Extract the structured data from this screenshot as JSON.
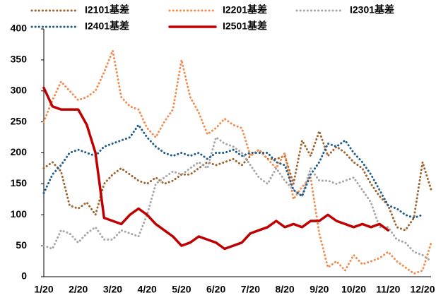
{
  "chart_data": {
    "type": "line",
    "categories": [
      "1/20",
      null,
      null,
      null,
      "2/20",
      null,
      null,
      null,
      "3/20",
      null,
      null,
      null,
      "4/20",
      null,
      null,
      null,
      "5/20",
      null,
      null,
      null,
      "6/20",
      null,
      null,
      null,
      "7/20",
      null,
      null,
      null,
      "8/20",
      null,
      null,
      null,
      "9/20",
      null,
      null,
      null,
      "10/20",
      null,
      null,
      null,
      "11/20",
      null,
      null,
      null,
      "12/20",
      null
    ],
    "ylim": [
      0,
      400
    ],
    "yticks": [
      0,
      50,
      100,
      150,
      200,
      250,
      300,
      350,
      400
    ],
    "series": [
      {
        "name": "I2101基差",
        "color": "#a0622d",
        "dashed": true,
        "values": [
          175,
          185,
          170,
          115,
          110,
          120,
          100,
          150,
          165,
          175,
          165,
          155,
          150,
          160,
          150,
          155,
          165,
          165,
          175,
          185,
          180,
          185,
          190,
          180,
          195,
          205,
          190,
          190,
          195,
          150,
          220,
          195,
          235,
          195,
          210,
          200,
          185,
          175,
          150,
          130,
          115,
          80,
          75,
          95,
          185,
          140
        ]
      },
      {
        "name": "I2201基差",
        "color": "#f58b4c",
        "dashed": true,
        "values": [
          250,
          285,
          315,
          300,
          285,
          290,
          300,
          330,
          365,
          290,
          275,
          270,
          240,
          225,
          250,
          270,
          350,
          290,
          265,
          230,
          240,
          255,
          245,
          240,
          195,
          205,
          190,
          175,
          200,
          125,
          145,
          160,
          70,
          15,
          25,
          10,
          35,
          20,
          25,
          30,
          40,
          25,
          15,
          5,
          10,
          55
        ]
      },
      {
        "name": "I2301基差",
        "color": "#a6a6a6",
        "dashed": true,
        "values": [
          50,
          45,
          75,
          70,
          55,
          70,
          80,
          60,
          60,
          75,
          70,
          65,
          100,
          150,
          160,
          170,
          165,
          175,
          185,
          175,
          225,
          215,
          210,
          200,
          180,
          160,
          150,
          175,
          155,
          140,
          130,
          175,
          155,
          155,
          150,
          155,
          160,
          140,
          120,
          80,
          80,
          60,
          55,
          40,
          35,
          25
        ]
      },
      {
        "name": "I2401基差",
        "color": "#1f5c8b",
        "dashed": true,
        "values": [
          135,
          165,
          180,
          200,
          205,
          200,
          195,
          210,
          215,
          220,
          225,
          245,
          225,
          210,
          200,
          195,
          200,
          195,
          200,
          190,
          200,
          200,
          205,
          195,
          200,
          200,
          200,
          185,
          180,
          140,
          130,
          165,
          185,
          215,
          210,
          220,
          200,
          185,
          165,
          140,
          115,
          110,
          100,
          95,
          100,
          null
        ]
      },
      {
        "name": "I2501基差",
        "color": "#c00000",
        "dashed": false,
        "values": [
          305,
          275,
          270,
          270,
          270,
          245,
          200,
          95,
          90,
          85,
          100,
          110,
          100,
          85,
          75,
          65,
          50,
          55,
          65,
          60,
          55,
          45,
          50,
          55,
          70,
          75,
          80,
          90,
          80,
          85,
          80,
          90,
          90,
          100,
          90,
          85,
          80,
          85,
          80,
          85,
          75,
          null,
          null,
          null,
          null,
          null
        ]
      }
    ]
  }
}
